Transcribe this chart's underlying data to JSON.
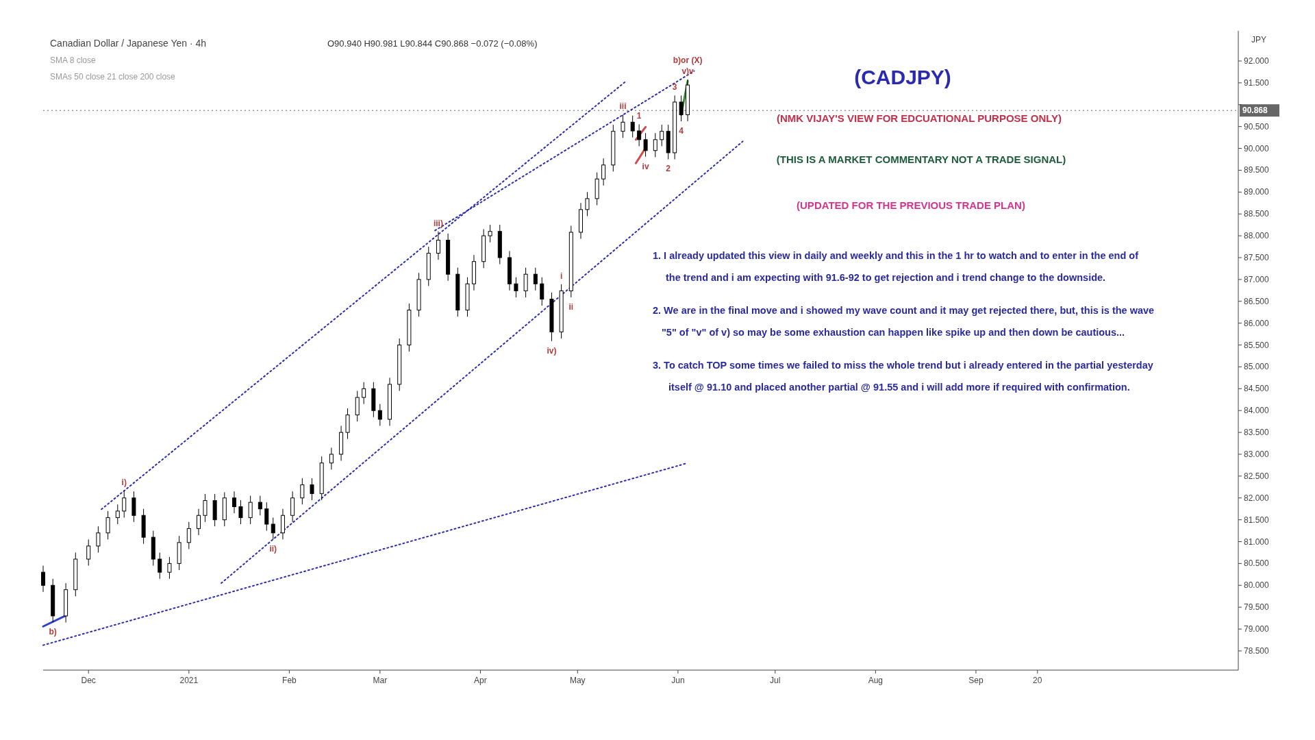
{
  "chart_data": {
    "type": "candlestick",
    "title": "(CADJPY)",
    "subtitle": "Canadian Dollar / Japanese Yen · 4h",
    "ylabel": "JPY",
    "color": "#000000",
    "x": [
      "2020-11-17",
      "2020-11-20",
      "2020-11-24",
      "2020-11-27",
      "2020-12-01",
      "2020-12-04",
      "2020-12-07",
      "2020-12-10",
      "2020-12-12",
      "2020-12-15",
      "2020-12-18",
      "2020-12-21",
      "2020-12-23",
      "2020-12-26",
      "2020-12-29",
      "2021-01-01",
      "2021-01-04",
      "2021-01-06",
      "2021-01-09",
      "2021-01-12",
      "2021-01-15",
      "2021-01-17",
      "2021-01-20",
      "2021-01-23",
      "2021-01-25",
      "2021-01-27",
      "2021-01-30",
      "2021-02-02",
      "2021-02-05",
      "2021-02-08",
      "2021-02-11",
      "2021-02-14",
      "2021-02-17",
      "2021-02-19",
      "2021-02-22",
      "2021-02-24",
      "2021-02-27",
      "2021-03-01",
      "2021-03-04",
      "2021-03-07",
      "2021-03-10",
      "2021-03-13",
      "2021-03-16",
      "2021-03-19",
      "2021-03-22",
      "2021-03-25",
      "2021-03-28",
      "2021-03-30",
      "2021-04-02",
      "2021-04-04",
      "2021-04-07",
      "2021-04-10",
      "2021-04-12",
      "2021-04-15",
      "2021-04-18",
      "2021-04-20",
      "2021-04-23",
      "2021-04-26",
      "2021-04-29",
      "2021-05-02",
      "2021-05-04",
      "2021-05-07",
      "2021-05-09",
      "2021-05-12",
      "2021-05-15",
      "2021-05-18",
      "2021-05-20",
      "2021-05-22",
      "2021-05-25",
      "2021-05-27",
      "2021-05-29",
      "2021-05-31",
      "2021-06-02",
      "2021-06-04"
    ],
    "ohlc": [
      [
        80.3,
        80.45,
        79.85,
        80.0
      ],
      [
        80.0,
        80.15,
        79.15,
        79.3
      ],
      [
        79.3,
        80.05,
        79.15,
        79.9
      ],
      [
        79.9,
        80.75,
        79.75,
        80.6
      ],
      [
        80.6,
        81.05,
        80.45,
        80.9
      ],
      [
        80.9,
        81.35,
        80.75,
        81.2
      ],
      [
        81.2,
        81.7,
        81.05,
        81.55
      ],
      [
        81.55,
        81.85,
        81.4,
        81.7
      ],
      [
        81.7,
        82.17,
        81.55,
        82.0
      ],
      [
        82.0,
        82.15,
        81.45,
        81.6
      ],
      [
        81.6,
        81.75,
        80.95,
        81.1
      ],
      [
        81.1,
        81.25,
        80.45,
        80.6
      ],
      [
        80.6,
        80.75,
        80.15,
        80.3
      ],
      [
        80.3,
        80.65,
        80.15,
        80.5
      ],
      [
        80.5,
        81.13,
        80.35,
        80.98
      ],
      [
        80.98,
        81.45,
        80.83,
        81.3
      ],
      [
        81.3,
        81.75,
        81.15,
        81.6
      ],
      [
        81.6,
        82.09,
        81.45,
        81.94
      ],
      [
        81.94,
        82.09,
        81.35,
        81.5
      ],
      [
        81.5,
        82.13,
        81.35,
        82.0
      ],
      [
        82.0,
        82.15,
        81.65,
        81.8
      ],
      [
        81.8,
        81.95,
        81.4,
        81.55
      ],
      [
        81.55,
        82.05,
        81.4,
        81.9
      ],
      [
        81.9,
        82.05,
        81.6,
        81.75
      ],
      [
        81.75,
        81.9,
        81.25,
        81.4
      ],
      [
        81.4,
        81.55,
        81.05,
        81.2
      ],
      [
        81.2,
        81.75,
        81.05,
        81.6
      ],
      [
        81.6,
        82.15,
        81.45,
        82.0
      ],
      [
        82.0,
        82.45,
        81.85,
        82.3
      ],
      [
        82.3,
        82.45,
        81.95,
        82.1
      ],
      [
        82.1,
        82.95,
        81.95,
        82.8
      ],
      [
        82.8,
        83.15,
        82.65,
        83.0
      ],
      [
        83.0,
        83.65,
        82.85,
        83.5
      ],
      [
        83.5,
        84.05,
        83.35,
        83.9
      ],
      [
        83.9,
        84.45,
        83.75,
        84.3
      ],
      [
        84.3,
        84.65,
        84.15,
        84.5
      ],
      [
        84.5,
        84.65,
        83.85,
        84.0
      ],
      [
        84.0,
        84.15,
        83.65,
        83.8
      ],
      [
        83.8,
        84.75,
        83.65,
        84.6
      ],
      [
        84.6,
        85.65,
        84.45,
        85.5
      ],
      [
        85.5,
        86.45,
        85.35,
        86.3
      ],
      [
        86.3,
        87.15,
        86.15,
        87.0
      ],
      [
        87.0,
        87.75,
        86.85,
        87.6
      ],
      [
        87.6,
        88.1,
        87.45,
        87.9
      ],
      [
        87.9,
        88.05,
        86.97,
        87.12
      ],
      [
        87.12,
        87.27,
        86.15,
        86.3
      ],
      [
        86.3,
        87.05,
        86.15,
        86.9
      ],
      [
        86.9,
        87.56,
        86.75,
        87.41
      ],
      [
        87.41,
        88.15,
        87.26,
        88.0
      ],
      [
        88.0,
        88.25,
        87.85,
        88.1
      ],
      [
        88.1,
        88.25,
        87.35,
        87.5
      ],
      [
        87.5,
        87.65,
        86.75,
        86.9
      ],
      [
        86.9,
        87.05,
        86.59,
        86.74
      ],
      [
        86.74,
        87.27,
        86.59,
        87.12
      ],
      [
        87.12,
        87.27,
        86.75,
        86.9
      ],
      [
        86.9,
        87.05,
        86.4,
        86.55
      ],
      [
        86.55,
        86.7,
        85.59,
        85.8
      ],
      [
        85.8,
        86.89,
        85.65,
        86.74
      ],
      [
        86.74,
        88.23,
        86.59,
        88.08
      ],
      [
        88.08,
        88.75,
        87.93,
        88.6
      ],
      [
        88.6,
        89.0,
        88.45,
        88.85
      ],
      [
        88.85,
        89.45,
        88.7,
        89.3
      ],
      [
        89.3,
        89.77,
        89.15,
        89.62
      ],
      [
        89.62,
        90.54,
        89.47,
        90.39
      ],
      [
        90.39,
        90.77,
        90.24,
        90.6
      ],
      [
        90.6,
        90.75,
        90.25,
        90.4
      ],
      [
        90.4,
        90.55,
        90.05,
        90.2
      ],
      [
        90.2,
        90.35,
        89.81,
        89.95
      ],
      [
        89.95,
        90.35,
        89.8,
        90.2
      ],
      [
        90.2,
        90.54,
        90.05,
        90.39
      ],
      [
        90.39,
        90.54,
        89.75,
        89.9
      ],
      [
        89.9,
        91.21,
        89.75,
        91.06
      ],
      [
        91.06,
        91.21,
        90.62,
        90.77
      ],
      [
        90.77,
        91.58,
        90.62,
        91.45
      ]
    ],
    "series": [
      {
        "type": "line",
        "x": [
          "2020-12-05",
          "2021-05-16"
        ],
        "values": [
          81.74,
          91.54
        ],
        "color": "#2b2bb0",
        "line_style": "dotted"
      },
      {
        "type": "line",
        "x": [
          "2021-03-18",
          "2021-06-06"
        ],
        "values": [
          88.12,
          91.77
        ],
        "color": "#2b2bb0",
        "line_style": "dotted"
      },
      {
        "type": "line",
        "x": [
          "2021-01-11",
          "2021-06-21"
        ],
        "values": [
          80.05,
          90.16
        ],
        "color": "#2b2bb0",
        "line_style": "dotted"
      },
      {
        "type": "line",
        "x": [
          "2020-11-17",
          "2021-06-04"
        ],
        "values": [
          78.63,
          82.8
        ],
        "color": "#2b2bb0",
        "line_style": "dotted"
      },
      {
        "type": "line",
        "x": [
          "2020-11-17",
          "2020-11-24"
        ],
        "values": [
          79.06,
          79.31
        ],
        "color": "#3040d0",
        "line_style": "solid"
      },
      {
        "type": "line",
        "x": [
          "2021-05-19",
          "2021-05-22"
        ],
        "values": [
          90.2,
          90.49
        ],
        "color": "#d24a4a",
        "line_style": "solid"
      },
      {
        "type": "line",
        "x": [
          "2021-05-19",
          "2021-05-22"
        ],
        "values": [
          89.66,
          90.01
        ],
        "color": "#d24a4a",
        "line_style": "solid"
      },
      {
        "type": "line",
        "x": [
          "2021-06-02",
          "2021-06-04"
        ],
        "values": [
          90.77,
          91.54
        ],
        "color": "#2e8b2e",
        "line_style": "solid"
      }
    ],
    "xlim": [
      "2020-11-17",
      "2021-11-21"
    ],
    "ylim": [
      78.06,
      92.69
    ],
    "xticks": [
      {
        "value": "2020-12-01",
        "label": "Dec"
      },
      {
        "value": "2021-01-01",
        "label": "2021"
      },
      {
        "value": "2021-02-01",
        "label": "Feb"
      },
      {
        "value": "2021-03-01",
        "label": "Mar"
      },
      {
        "value": "2021-04-01",
        "label": "Apr"
      },
      {
        "value": "2021-05-01",
        "label": "May"
      },
      {
        "value": "2021-06-01",
        "label": "Jun"
      },
      {
        "value": "2021-07-01",
        "label": "Jul"
      },
      {
        "value": "2021-08-01",
        "label": "Aug"
      },
      {
        "value": "2021-09-01",
        "label": "Sep"
      },
      {
        "value": "2021-09-20",
        "label": "20"
      }
    ],
    "yticks": [
      {
        "value": 78.5,
        "label": "78.500"
      },
      {
        "value": 79,
        "label": "79.000"
      },
      {
        "value": 79.5,
        "label": "79.500"
      },
      {
        "value": 80,
        "label": "80.000"
      },
      {
        "value": 80.5,
        "label": "80.500"
      },
      {
        "value": 81,
        "label": "81.000"
      },
      {
        "value": 81.5,
        "label": "81.500"
      },
      {
        "value": 82,
        "label": "82.000"
      },
      {
        "value": 82.5,
        "label": "82.500"
      },
      {
        "value": 83,
        "label": "83.000"
      },
      {
        "value": 83.5,
        "label": "83.500"
      },
      {
        "value": 84,
        "label": "84.000"
      },
      {
        "value": 84.5,
        "label": "84.500"
      },
      {
        "value": 85,
        "label": "85.000"
      },
      {
        "value": 85.5,
        "label": "85.500"
      },
      {
        "value": 86,
        "label": "86.000"
      },
      {
        "value": 86.5,
        "label": "86.500"
      },
      {
        "value": 87,
        "label": "87.000"
      },
      {
        "value": 87.5,
        "label": "87.500"
      },
      {
        "value": 88,
        "label": "88.000"
      },
      {
        "value": 88.5,
        "label": "88.500"
      },
      {
        "value": 89,
        "label": "89.000"
      },
      {
        "value": 89.5,
        "label": "89.500"
      },
      {
        "value": 90,
        "label": "90.000"
      },
      {
        "value": 90.5,
        "label": "90.500"
      },
      {
        "value": 91,
        "label": null
      },
      {
        "value": 91.5,
        "label": "91.500"
      },
      {
        "value": 92,
        "label": "92.000"
      }
    ],
    "ref_lines": [
      {
        "axis": "y",
        "value": 90.868,
        "label": "90.868",
        "color": "#666666",
        "line_style": "dotted"
      }
    ],
    "annotations": [
      "O90.940 H90.981 L90.844 C90.868 −0.072 (−0.08%)",
      "SMA 8 close",
      "SMAs 50 close 21 close 200 close",
      "(NMK VIJAY'S VIEW FOR EDCUATIONAL PURPOSE ONLY)",
      "(THIS IS A MARKET COMMENTARY NOT A TRADE SIGNAL)",
      "(UPDATED FOR THE PREVIOUS TRADE PLAN)",
      "1. I already updated this view in daily and weekly and this in the 1 hr to watch and to enter in the end of",
      "the trend and i am expecting with 91.6-92 to get rejection and i trend change to the downside.",
      "2. We are in the final move and i showed my wave count and it may get rejected there, but, this is the wave",
      "\"5\" of \"v\" of v) so may be some exhaustion can happen like spike up and then down be cautious...",
      "3. To catch TOP some times we failed to miss the whole trend but i already entered in the partial yesterday",
      "itself @ 91.10 and placed another partial @ 91.55 and i will add more if required with confirmation.",
      {
        "text": "b)",
        "x": "2020-11-20",
        "y": 79.15
      },
      {
        "text": "i)",
        "x": "2020-12-12",
        "y": 82.17
      },
      {
        "text": "ii)",
        "x": "2021-01-27",
        "y": 81.05
      },
      {
        "text": "iii)",
        "x": "2021-03-19",
        "y": 88.1
      },
      {
        "text": "iv)",
        "x": "2021-04-23",
        "y": 85.59
      },
      {
        "text": "i",
        "x": "2021-04-26",
        "y": 86.89
      },
      {
        "text": "ii",
        "x": "2021-04-29",
        "y": 86.59
      },
      {
        "text": "iii",
        "x": "2021-05-15",
        "y": 90.77
      },
      {
        "text": "iv",
        "x": "2021-05-22",
        "y": 89.81
      },
      {
        "text": "1",
        "x": "2021-05-20",
        "y": 90.55
      },
      {
        "text": "2",
        "x": "2021-05-29",
        "y": 89.75
      },
      {
        "text": "3",
        "x": "2021-05-31",
        "y": 91.21
      },
      {
        "text": "4",
        "x": "2021-06-02",
        "y": 90.62
      },
      {
        "text": "v)v",
        "x": "2021-06-04",
        "y": 91.58
      },
      {
        "text": "b)or (X)",
        "x": "2021-06-04",
        "y": 91.58
      }
    ]
  }
}
